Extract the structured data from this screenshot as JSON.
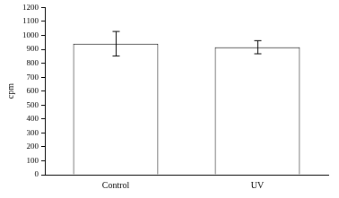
{
  "chart_data": {
    "type": "bar",
    "categories": [
      "Control",
      "UV"
    ],
    "values": [
      940,
      915
    ],
    "errors": [
      88,
      47
    ],
    "color": "#ffffff",
    "y_label": "cpm",
    "ylim": [
      0,
      1200
    ],
    "yticks": [
      0,
      100,
      200,
      300,
      400,
      500,
      600,
      700,
      800,
      900,
      1000,
      1100,
      1200
    ],
    "grid": false
  }
}
